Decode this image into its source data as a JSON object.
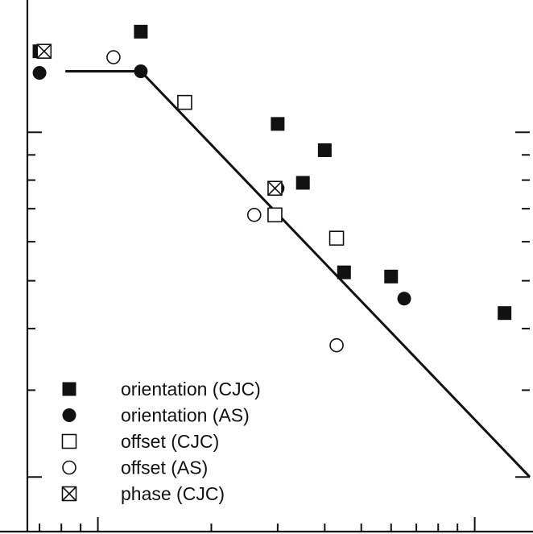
{
  "chart_data": {
    "type": "scatter",
    "title": "",
    "xlabel": "",
    "ylabel": "",
    "x_scale": "log",
    "y_scale": "log",
    "xlim": [
      0.65,
      14
    ],
    "ylim": [
      0.155,
      1.8
    ],
    "grid": false,
    "legend_position": "bottom-left",
    "series": [
      {
        "name": "orientation (CJC)",
        "marker": "filled-square",
        "points": [
          [
            0.7,
            1.46
          ],
          [
            1.3,
            1.6
          ],
          [
            3.0,
            1.04
          ],
          [
            3.5,
            0.79
          ],
          [
            4.0,
            0.92
          ],
          [
            4.5,
            0.52
          ],
          [
            6.0,
            0.51
          ],
          [
            12.0,
            0.43
          ]
        ]
      },
      {
        "name": "orientation (AS)",
        "marker": "filled-circle",
        "points": [
          [
            0.7,
            1.32
          ],
          [
            1.3,
            1.33
          ],
          [
            3.0,
            0.77
          ],
          [
            6.5,
            0.46
          ]
        ]
      },
      {
        "name": "offset (CJC)",
        "marker": "open-square",
        "points": [
          [
            1.7,
            1.15
          ],
          [
            2.95,
            0.68
          ],
          [
            4.3,
            0.61
          ]
        ]
      },
      {
        "name": "offset (AS)",
        "marker": "open-circle",
        "points": [
          [
            1.1,
            1.42
          ],
          [
            2.6,
            0.68
          ],
          [
            4.3,
            0.37
          ]
        ]
      },
      {
        "name": "phase (CJC)",
        "marker": "crossed-square",
        "points": [
          [
            0.72,
            1.46
          ],
          [
            2.95,
            0.77
          ]
        ]
      }
    ],
    "fit_line": [
      [
        0.82,
        1.33
      ],
      [
        1.3,
        1.33
      ],
      [
        14.0,
        0.2
      ]
    ]
  }
}
